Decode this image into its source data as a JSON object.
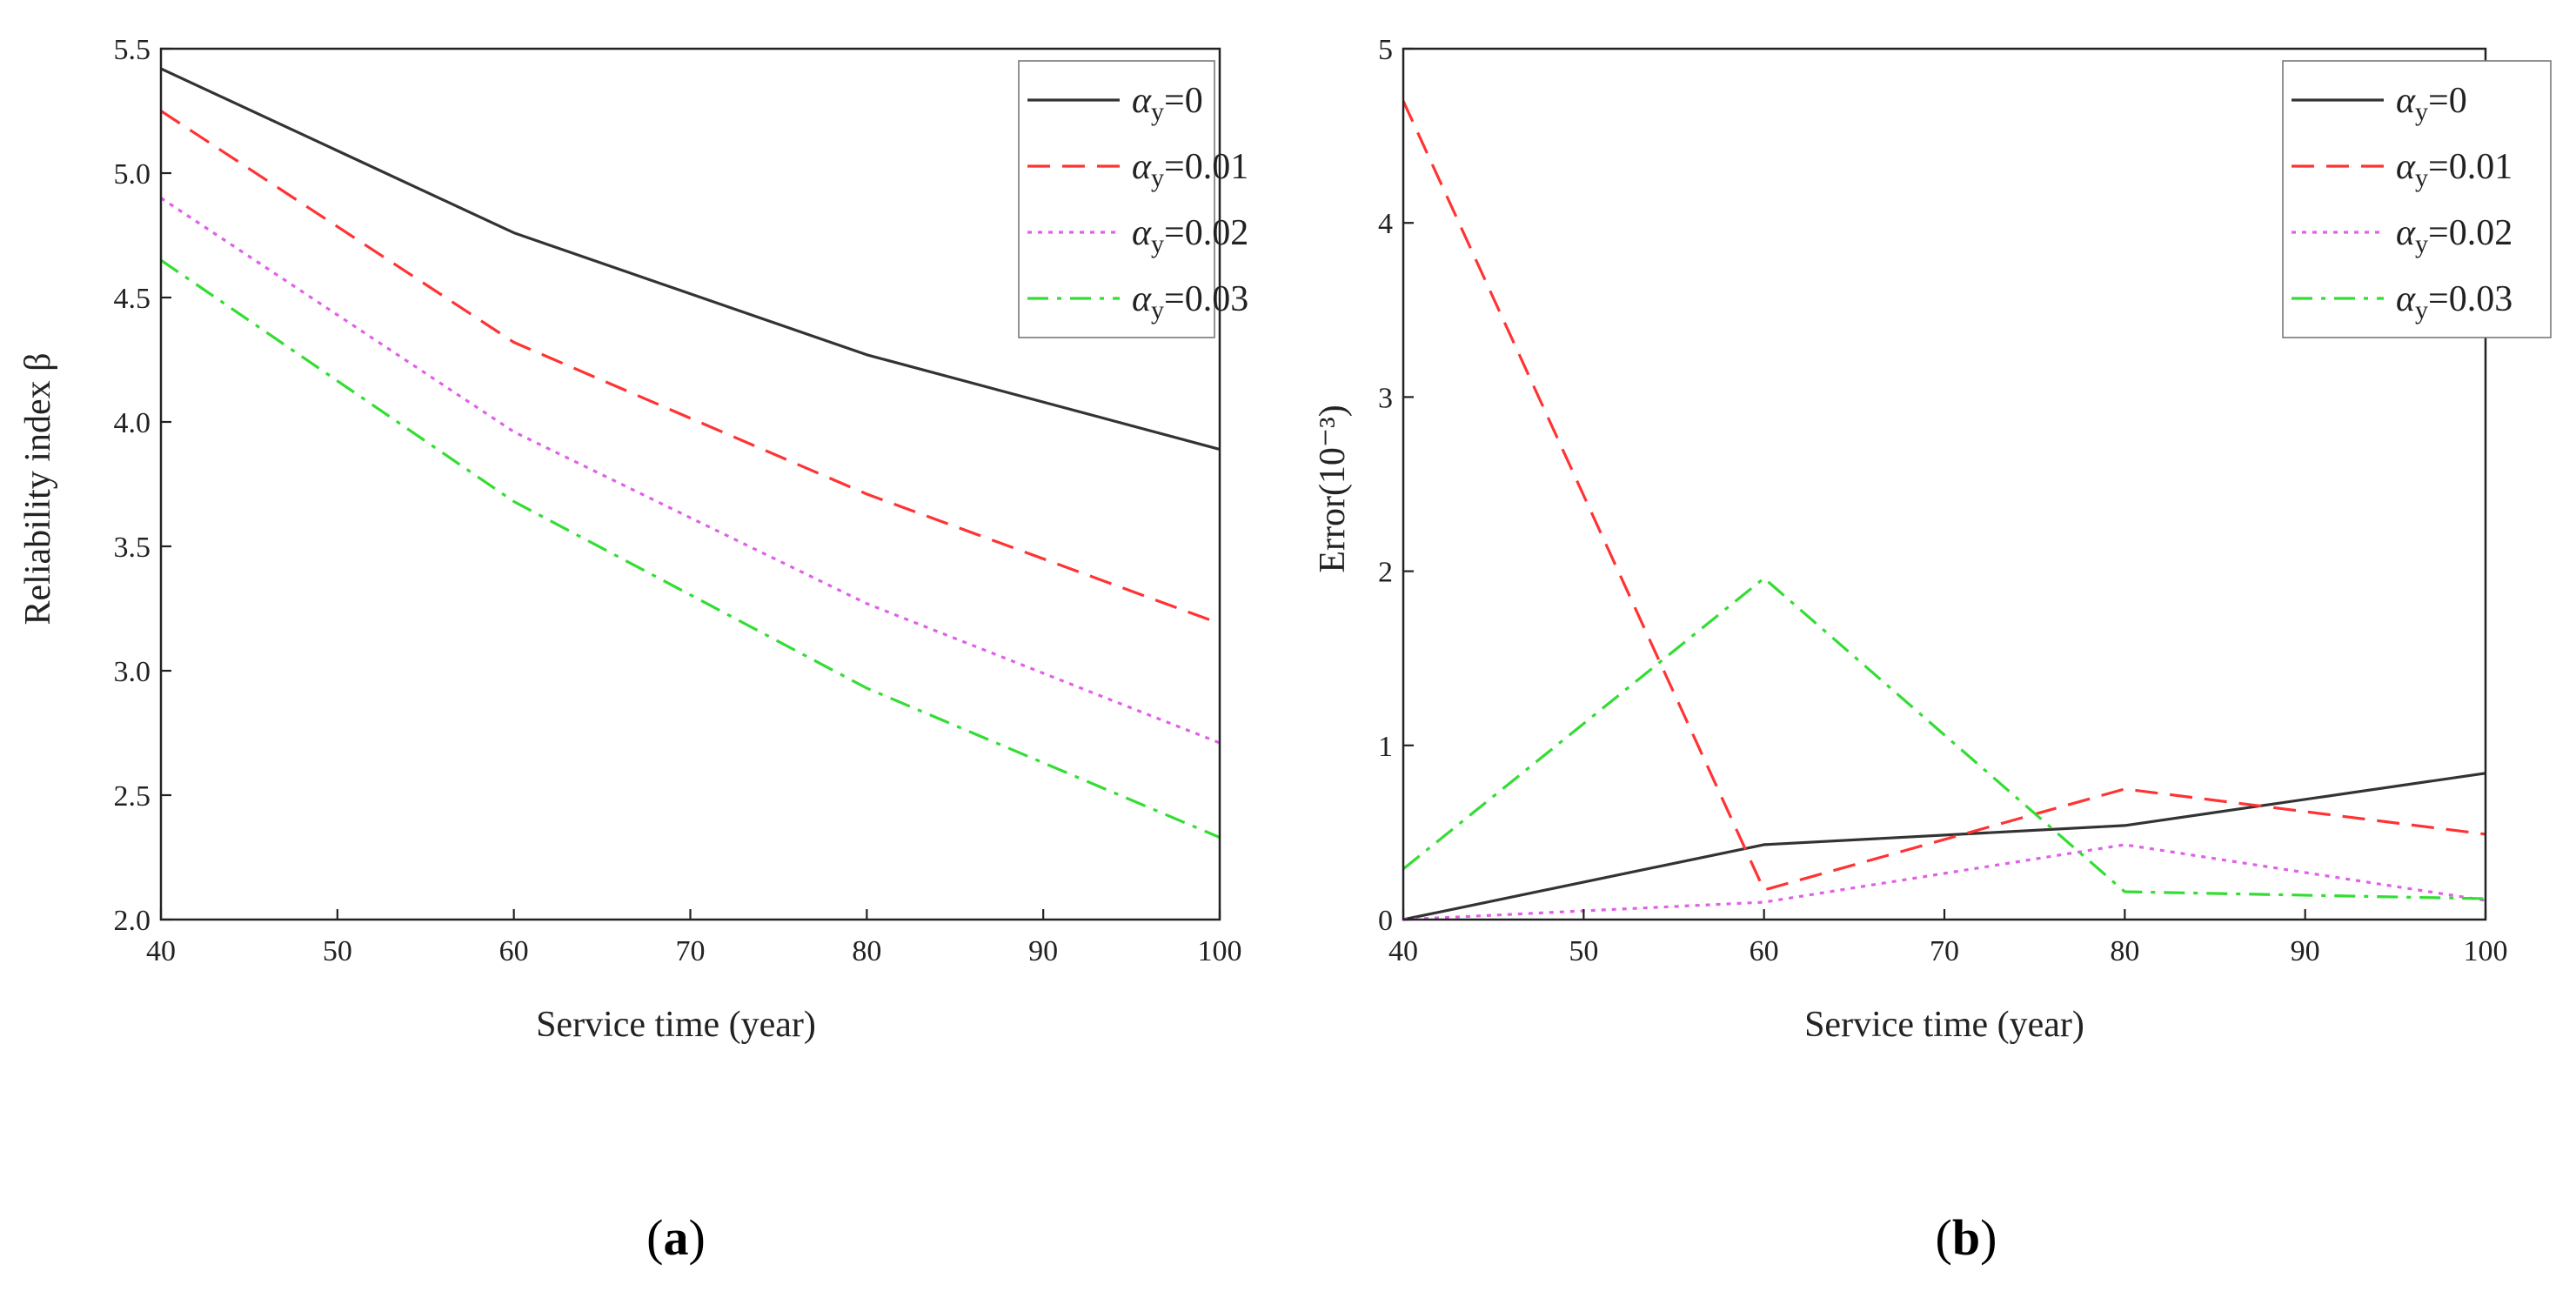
{
  "chart_data": [
    {
      "type": "line",
      "panel": "a",
      "caption": {
        "open": "(",
        "letter": "a",
        "close": ")"
      },
      "xlabel": "Service time (year)",
      "ylabel": "Reliability index β",
      "xlim": [
        40,
        100
      ],
      "ylim": [
        2.0,
        5.5
      ],
      "xticks": [
        40,
        50,
        60,
        70,
        80,
        90,
        100
      ],
      "yticks": [
        2.0,
        2.5,
        3.0,
        3.5,
        4.0,
        4.5,
        5.0,
        5.5
      ],
      "ytick_decimals": 1,
      "x": [
        40,
        60,
        80,
        100
      ],
      "legend_position": "top-right",
      "series": [
        {
          "name": "αy=0",
          "symbol": "α",
          "sub": "y",
          "value_text": "=0",
          "values": [
            5.42,
            4.76,
            4.27,
            3.89
          ],
          "color": "#333333",
          "style": "solid"
        },
        {
          "name": "αy=0.01",
          "symbol": "α",
          "sub": "y",
          "value_text": "=0.01",
          "values": [
            5.25,
            4.32,
            3.71,
            3.19
          ],
          "color": "#ff3333",
          "style": "dashed"
        },
        {
          "name": "αy=0.02",
          "symbol": "α",
          "sub": "y",
          "value_text": "=0.02",
          "values": [
            4.9,
            3.96,
            3.27,
            2.71
          ],
          "color": "#e060e8",
          "style": "dotted"
        },
        {
          "name": "αy=0.03",
          "symbol": "α",
          "sub": "y",
          "value_text": "=0.03",
          "values": [
            4.65,
            3.68,
            2.93,
            2.33
          ],
          "color": "#33dd33",
          "style": "dashdot"
        }
      ]
    },
    {
      "type": "line",
      "panel": "b",
      "caption": {
        "open": "(",
        "letter": "b",
        "close": ")"
      },
      "xlabel": "Service time (year)",
      "ylabel": "Error(10⁻³)",
      "xlim": [
        40,
        100
      ],
      "ylim": [
        0,
        5
      ],
      "xticks": [
        40,
        50,
        60,
        70,
        80,
        90,
        100
      ],
      "yticks": [
        0,
        1,
        2,
        3,
        4,
        5
      ],
      "ytick_decimals": 0,
      "x": [
        40,
        60,
        80,
        100
      ],
      "legend_position": "top-right",
      "series": [
        {
          "name": "αy=0",
          "symbol": "α",
          "sub": "y",
          "value_text": "=0",
          "values": [
            0.0,
            0.43,
            0.54,
            0.84
          ],
          "color": "#333333",
          "style": "solid"
        },
        {
          "name": "αy=0.01",
          "symbol": "α",
          "sub": "y",
          "value_text": "=0.01",
          "values": [
            4.7,
            0.17,
            0.75,
            0.49
          ],
          "color": "#ff3333",
          "style": "dashed"
        },
        {
          "name": "αy=0.02",
          "symbol": "α",
          "sub": "y",
          "value_text": "=0.02",
          "values": [
            0.0,
            0.1,
            0.43,
            0.11
          ],
          "color": "#e060e8",
          "style": "dotted"
        },
        {
          "name": "αy=0.03",
          "symbol": "α",
          "sub": "y",
          "value_text": "=0.03",
          "values": [
            0.29,
            1.96,
            0.16,
            0.12
          ],
          "color": "#33dd33",
          "style": "dashdot"
        }
      ]
    }
  ]
}
